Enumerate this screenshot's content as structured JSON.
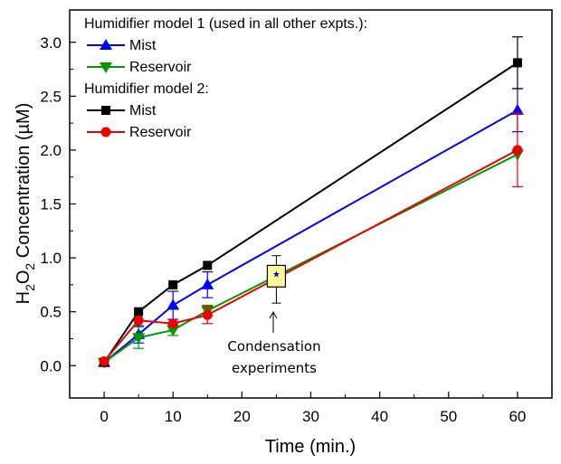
{
  "chart_data": {
    "type": "line",
    "title": "",
    "xlabel": "Time (min.)",
    "ylabel_main": "H",
    "ylabel_sub": "2",
    "ylabel_mid": "O",
    "ylabel_sub2": "2",
    "ylabel_rest": " Concentration (µM)",
    "xlim": [
      -5,
      65
    ],
    "ylim": [
      -0.3,
      3.3
    ],
    "x_ticks": [
      0,
      10,
      20,
      30,
      40,
      50,
      60
    ],
    "x_tick_labels": [
      "0",
      "10",
      "20",
      "30",
      "40",
      "50",
      "60"
    ],
    "y_ticks": [
      0.0,
      0.5,
      1.0,
      1.5,
      2.0,
      2.5,
      3.0
    ],
    "y_tick_labels": [
      "0.0",
      "0.5",
      "1.0",
      "1.5",
      "2.0",
      "2.5",
      "3.0"
    ],
    "legend_groups": [
      {
        "title": "Humidifier model 1 (used in all other expts.):",
        "series_names": [
          "Mist",
          "Reservoir"
        ]
      },
      {
        "title": "Humidifier model 2:",
        "series_names": [
          "Mist",
          "Reservoir"
        ]
      }
    ],
    "series": [
      {
        "name": "Mist",
        "group": "model1",
        "color": "#0000ff",
        "marker": "triangle-up",
        "x": [
          0,
          5,
          10,
          15,
          60
        ],
        "y": [
          0.03,
          0.29,
          0.56,
          0.75,
          2.37
        ],
        "err": [
          0.02,
          0.08,
          0.13,
          0.12,
          0.2
        ]
      },
      {
        "name": "Reservoir",
        "group": "model1",
        "color": "#009900",
        "marker": "triangle-down",
        "x": [
          0,
          5,
          10,
          15,
          60
        ],
        "y": [
          0.03,
          0.26,
          0.33,
          0.51,
          1.96
        ],
        "err": [
          0.02,
          0.1,
          0.05,
          0.05,
          0.0
        ]
      },
      {
        "name": "Mist",
        "group": "model2",
        "color": "#000000",
        "marker": "square",
        "x": [
          0,
          5,
          10,
          15,
          60
        ],
        "y": [
          0.03,
          0.5,
          0.75,
          0.93,
          2.81
        ],
        "err": [
          0.0,
          0.0,
          0.0,
          0.0,
          0.24
        ]
      },
      {
        "name": "Reservoir",
        "group": "model2",
        "color": "#ee0000",
        "marker": "circle",
        "x": [
          0,
          5,
          10,
          15,
          60
        ],
        "y": [
          0.04,
          0.42,
          0.39,
          0.47,
          2.0
        ],
        "err": [
          0.0,
          0.0,
          0.0,
          0.08,
          0.34
        ]
      }
    ],
    "condensation_box": {
      "x": 25,
      "q1": 0.73,
      "q3": 0.93,
      "mean": 0.85,
      "whisker_low": 0.58,
      "whisker_high": 1.02,
      "fill": "#ffff99"
    },
    "annotation": {
      "lines": [
        "Condensation",
        "experiments"
      ],
      "arrow_from_y": 0.5,
      "arrow_to_y": 0.52,
      "x": 25
    }
  }
}
